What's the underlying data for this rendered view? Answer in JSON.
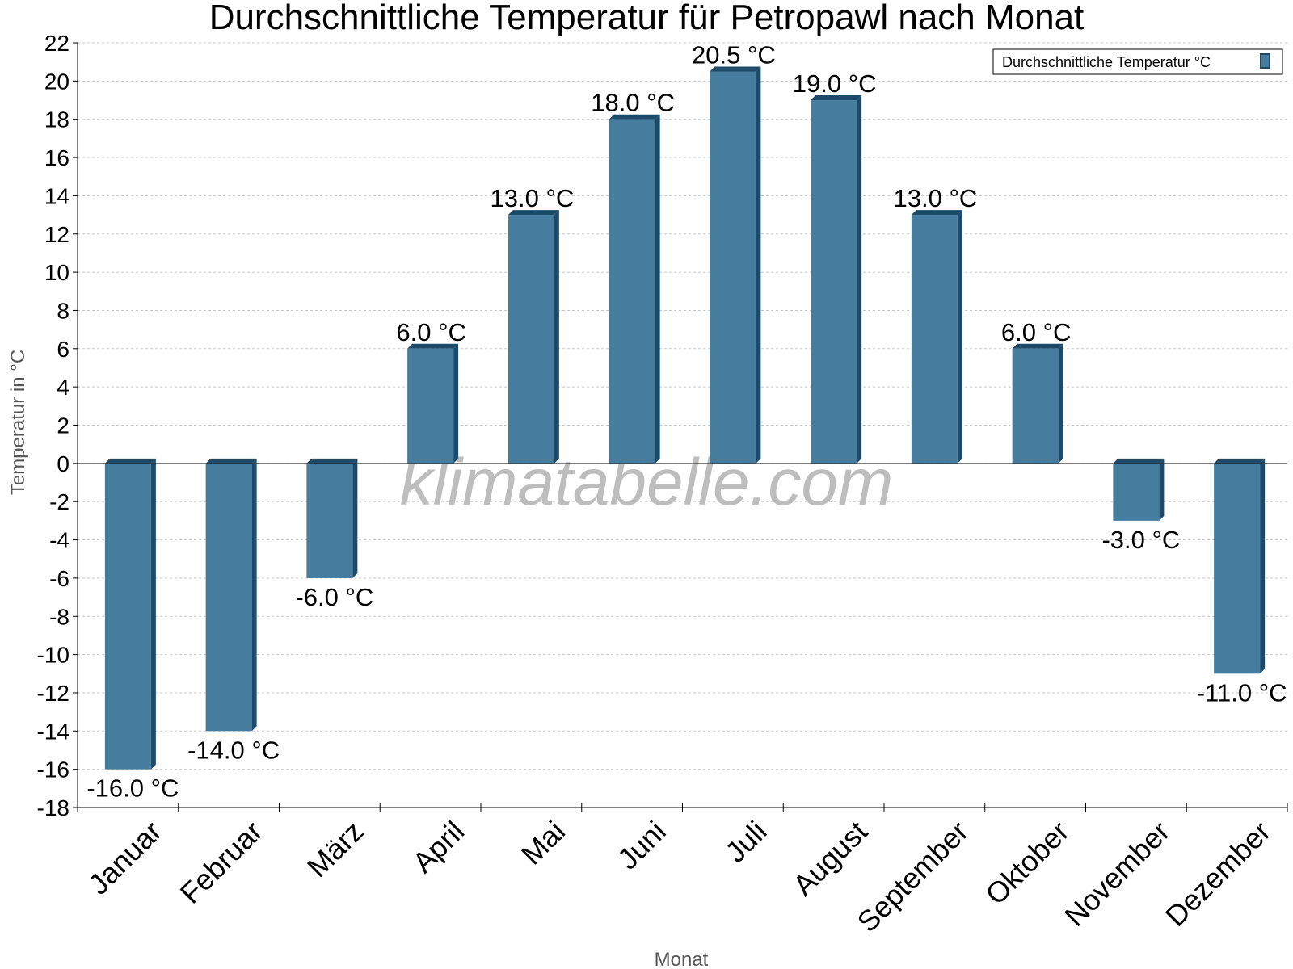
{
  "chart_data": {
    "type": "bar",
    "title": "Durchschnittliche Temperatur für Petropawl nach Monat",
    "xlabel": "Monat",
    "ylabel": "Temperatur in °C",
    "ylim": [
      -18,
      22
    ],
    "ytick_step": 2,
    "grid": true,
    "legend_position": "top-right",
    "categories": [
      "Januar",
      "Februar",
      "März",
      "April",
      "Mai",
      "Juni",
      "Juli",
      "August",
      "September",
      "Oktober",
      "November",
      "Dezember"
    ],
    "series": [
      {
        "name": "Durchschnittliche Temperatur °C",
        "values": [
          -16.0,
          -14.0,
          -6.0,
          6.0,
          13.0,
          18.0,
          20.5,
          19.0,
          13.0,
          6.0,
          -3.0,
          -11.0
        ],
        "labels": [
          "-16.0 °C",
          "-14.0 °C",
          "-6.0 °C",
          "6.0 °C",
          "13.0 °C",
          "18.0 °C",
          "20.5 °C",
          "19.0 °C",
          "13.0 °C",
          "6.0 °C",
          "-3.0 °C",
          "-11.0 °C"
        ],
        "color": "#467c9e",
        "side_color": "#1e4a6a"
      }
    ],
    "watermark": "klimatabelle.com"
  }
}
